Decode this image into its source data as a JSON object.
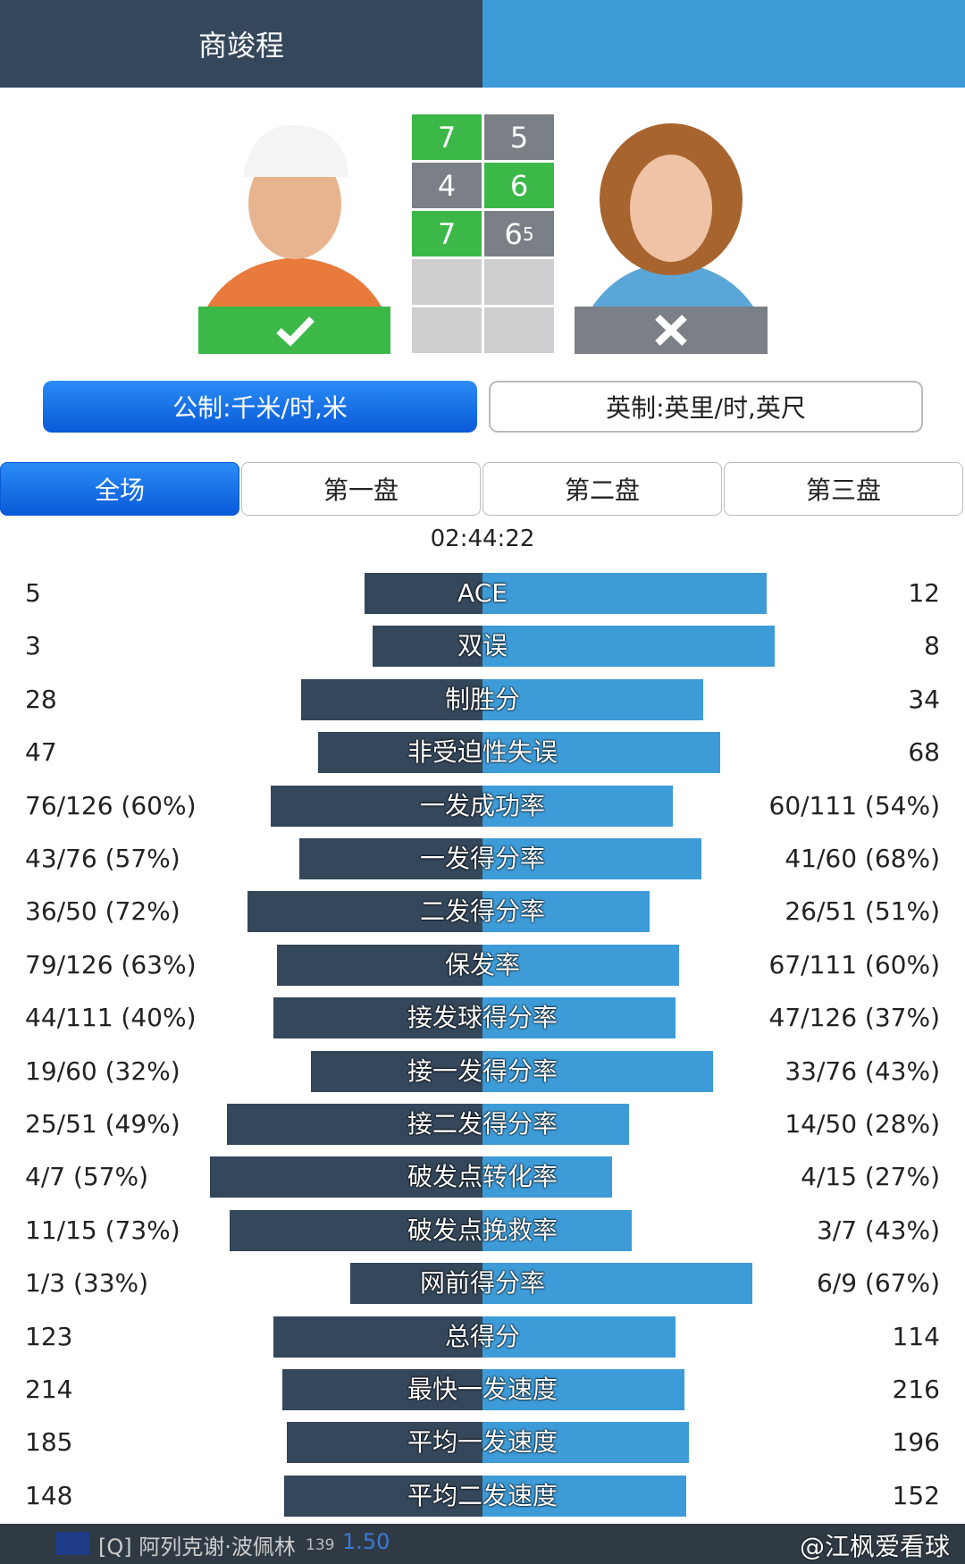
{
  "header": {
    "player_left": "商竣程"
  },
  "score": {
    "sets": [
      {
        "left": "7",
        "right": "5"
      },
      {
        "left": "4",
        "right": "6"
      },
      {
        "left": "7",
        "right": "6",
        "right_tiebreak": "5"
      }
    ]
  },
  "units": [
    "公制:千米/时,米",
    "英制:英里/时,英尺"
  ],
  "tabs": [
    "全场",
    "第一盘",
    "第二盘",
    "第三盘"
  ],
  "duration": "02:44:22",
  "stats": [
    {
      "label": "ACE",
      "left": "5",
      "right": "12"
    },
    {
      "label": "双误",
      "left": "3",
      "right": "8"
    },
    {
      "label": "制胜分",
      "left": "28",
      "right": "34"
    },
    {
      "label": "非受迫性失误",
      "left": "47",
      "right": "68"
    },
    {
      "label": "一发成功率",
      "left": "76/126 (60%)",
      "right": "60/111 (54%)"
    },
    {
      "label": "一发得分率",
      "left": "43/76 (57%)",
      "right": "41/60 (68%)"
    },
    {
      "label": "二发得分率",
      "left": "36/50 (72%)",
      "right": "26/51 (51%)"
    },
    {
      "label": "保发率",
      "left": "79/126 (63%)",
      "right": "67/111 (60%)"
    },
    {
      "label": "接发球得分率",
      "left": "44/111 (40%)",
      "right": "47/126 (37%)"
    },
    {
      "label": "接一发得分率",
      "left": "19/60 (32%)",
      "right": "33/76 (43%)"
    },
    {
      "label": "接二发得分率",
      "left": "25/51 (49%)",
      "right": "14/50 (28%)"
    },
    {
      "label": "破发点转化率",
      "left": "4/7 (57%)",
      "right": "4/15 (27%)"
    },
    {
      "label": "破发点挽救率",
      "left": "11/15 (73%)",
      "right": "3/7 (43%)"
    },
    {
      "label": "网前得分率",
      "left": "1/3 (33%)",
      "right": "6/9 (67%)"
    },
    {
      "label": "总得分",
      "left": "123",
      "right": "114"
    },
    {
      "label": "最快一发速度",
      "left": "214",
      "right": "216"
    },
    {
      "label": "平均一发速度",
      "left": "185",
      "right": "196"
    },
    {
      "label": "平均二发速度",
      "left": "148",
      "right": "152"
    }
  ],
  "footer": {
    "player": "[Q] 阿列克谢·波佩林",
    "rank": "139",
    "odds": "1.50",
    "watermark": "@江枫爱看球"
  }
}
